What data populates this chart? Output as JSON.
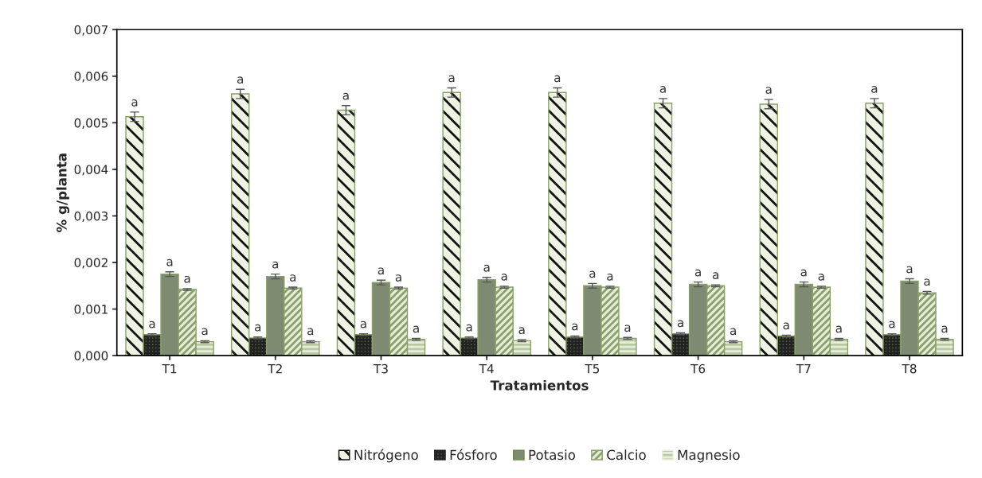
{
  "chart_data": {
    "type": "bar",
    "xlabel": "Tratamientos",
    "ylabel": "% g/planta",
    "categories": [
      "T1",
      "T2",
      "T3",
      "T4",
      "T5",
      "T6",
      "T7",
      "T8"
    ],
    "ylim": [
      0,
      0.007
    ],
    "yticks": [
      {
        "value": 0,
        "label": "0,000"
      },
      {
        "value": 0.001,
        "label": "0,001"
      },
      {
        "value": 0.002,
        "label": "0,002"
      },
      {
        "value": 0.003,
        "label": "0,003"
      },
      {
        "value": 0.004,
        "label": "0,004"
      },
      {
        "value": 0.005,
        "label": "0,005"
      },
      {
        "value": 0.006,
        "label": "0,006"
      },
      {
        "value": 0.007,
        "label": "0,007"
      }
    ],
    "grid": false,
    "legend": "bottom",
    "series": [
      {
        "name": "Nitrógeno",
        "color": "#eef3e4",
        "values": [
          0.00513,
          0.00562,
          0.00527,
          0.00565,
          0.00565,
          0.00542,
          0.0054,
          0.00542
        ],
        "errors": [
          0.0001,
          0.0001,
          0.0001,
          0.0001,
          0.0001,
          0.0001,
          0.0001,
          0.0001
        ],
        "value_labels": [
          "a",
          "a",
          "a",
          "a",
          "a",
          "a",
          "a",
          "a"
        ]
      },
      {
        "name": "Fósforo",
        "color": "#5d6b4c",
        "values": [
          0.00045,
          0.00038,
          0.00045,
          0.00038,
          0.0004,
          0.00047,
          0.00042,
          0.00045
        ],
        "errors": [
          2e-05,
          2e-05,
          2e-05,
          2e-05,
          2e-05,
          2e-05,
          2e-05,
          2e-05
        ],
        "value_labels": [
          "a",
          "a",
          "a",
          "a",
          "a",
          "a",
          "a",
          "a"
        ]
      },
      {
        "name": "Potasio",
        "color": "#7f8a72",
        "values": [
          0.00175,
          0.0017,
          0.00157,
          0.00163,
          0.0015,
          0.00153,
          0.00153,
          0.0016
        ],
        "errors": [
          5e-05,
          5e-05,
          5e-05,
          5e-05,
          5e-05,
          5e-05,
          5e-05,
          5e-05
        ],
        "value_labels": [
          "a",
          "a",
          "a",
          "a",
          "a",
          "a",
          "a",
          "a"
        ]
      },
      {
        "name": "Calcio",
        "color": "#e6eed6",
        "values": [
          0.00142,
          0.00145,
          0.00145,
          0.00147,
          0.00147,
          0.0015,
          0.00147,
          0.00135
        ],
        "errors": [
          2e-05,
          2e-05,
          2e-05,
          2e-05,
          2e-05,
          2e-05,
          2e-05,
          3e-05
        ],
        "value_labels": [
          "a",
          "a",
          "a",
          "a",
          "a",
          "a",
          "a",
          "a"
        ]
      },
      {
        "name": "Magnesio",
        "color": "#b9c9a0",
        "values": [
          0.0003,
          0.0003,
          0.00035,
          0.00032,
          0.00037,
          0.0003,
          0.00035,
          0.00035
        ],
        "errors": [
          2e-05,
          2e-05,
          2e-05,
          2e-05,
          2e-05,
          2e-05,
          2e-05,
          2e-05
        ],
        "value_labels": [
          "a",
          "a",
          "a",
          "a",
          "a",
          "a",
          "a",
          "a"
        ]
      }
    ]
  }
}
